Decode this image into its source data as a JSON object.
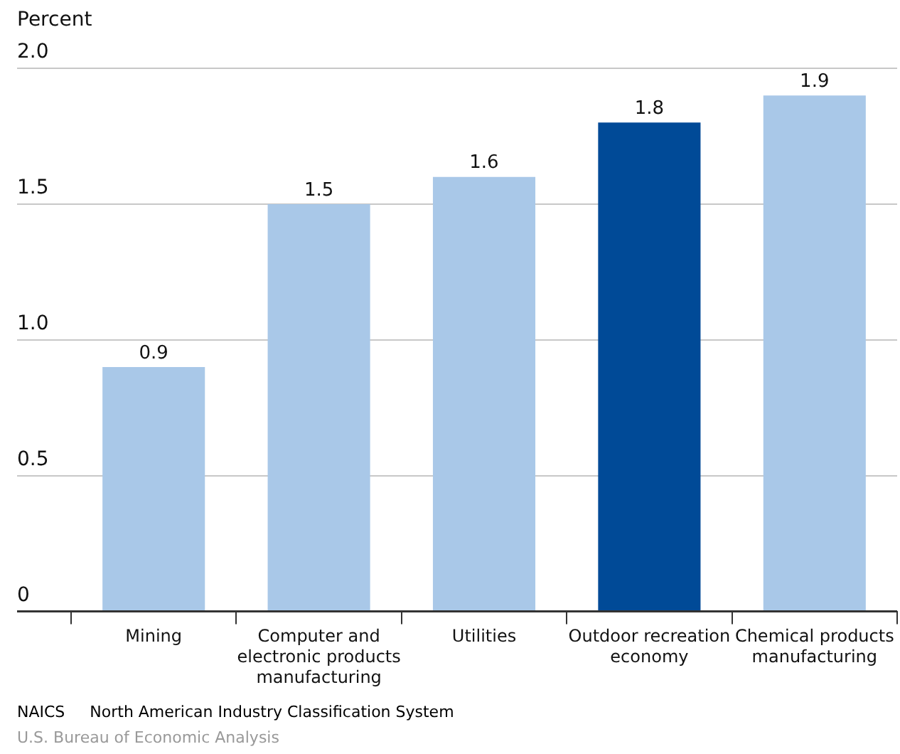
{
  "chart_data": {
    "type": "bar",
    "ylabel": "Percent",
    "categories": [
      "Mining",
      "Computer and electronic products manufacturing",
      "Utilities",
      "Outdoor recreation economy",
      "Chemical products manufacturing"
    ],
    "values": [
      0.9,
      1.5,
      1.6,
      1.8,
      1.9
    ],
    "colors": [
      "#a9c8e8",
      "#a9c8e8",
      "#a9c8e8",
      "#004a97",
      "#a9c8e8"
    ],
    "ylim": [
      0,
      2
    ],
    "yticks": [
      0,
      {
        "value": 0.5,
        "label": "0.5"
      },
      {
        "value": 1,
        "label": "1.0"
      },
      {
        "value": 1.5,
        "label": "1.5"
      },
      {
        "value": 2,
        "label": "2.0"
      }
    ],
    "grid": "y",
    "data_labels": true,
    "legend": false,
    "annotations": [
      "NAICS     North American Industry Classification System",
      "U.S. Bureau of Economic Analysis"
    ]
  }
}
